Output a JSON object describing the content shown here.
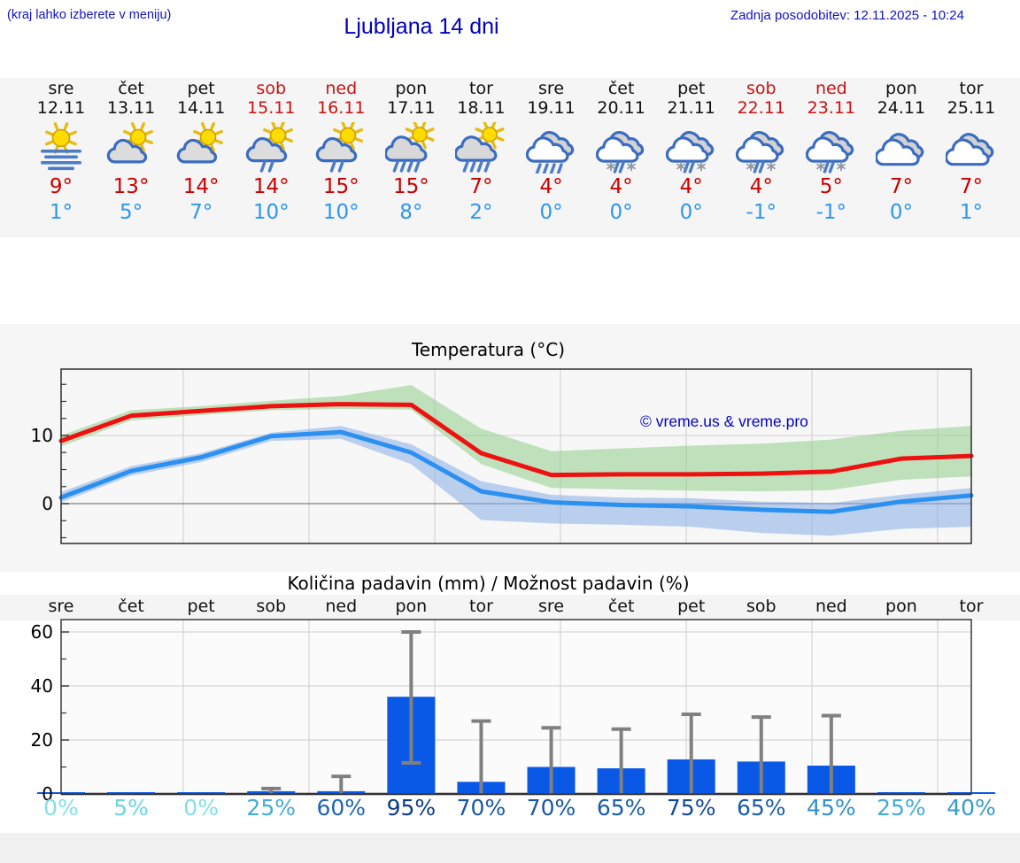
{
  "header": {
    "hint": "(kraj lahko izberete v meniju)",
    "title": "Ljubljana 14 dni",
    "updated": "Zadnja posodobitev: 12.11.2025 - 10:24"
  },
  "watermark": "© vreme.us & vreme.pro",
  "colors": {
    "header_blue": "#1212cc",
    "temp_max_red": "#cc0000",
    "temp_min_blue": "#2e96f0",
    "weekend_red": "#cc1111",
    "bar_blue": "#0a58e6",
    "error_gray": "#808080",
    "max_line": "#ee1111",
    "min_line": "#2b90f0",
    "max_band": "#8fce88",
    "min_band": "#88aee8"
  },
  "days": [
    {
      "name": "sre",
      "date": "12.11",
      "red": false,
      "icon": "fog-sun",
      "tmax": "9°",
      "tmin": "1°"
    },
    {
      "name": "čet",
      "date": "13.11",
      "red": false,
      "icon": "partly-cloudy",
      "tmax": "13°",
      "tmin": "5°"
    },
    {
      "name": "pet",
      "date": "14.11",
      "red": false,
      "icon": "partly-cloudy",
      "tmax": "14°",
      "tmin": "7°"
    },
    {
      "name": "sob",
      "date": "15.11",
      "red": true,
      "icon": "rain-sun",
      "tmax": "14°",
      "tmin": "10°"
    },
    {
      "name": "ned",
      "date": "16.11",
      "red": true,
      "icon": "rain-sun",
      "tmax": "15°",
      "tmin": "10°"
    },
    {
      "name": "pon",
      "date": "17.11",
      "red": false,
      "icon": "rain-sun-heavy",
      "tmax": "15°",
      "tmin": "8°"
    },
    {
      "name": "tor",
      "date": "18.11",
      "red": false,
      "icon": "rain-sun-heavy",
      "tmax": "7°",
      "tmin": "2°"
    },
    {
      "name": "sre",
      "date": "19.11",
      "red": false,
      "icon": "rain",
      "tmax": "4°",
      "tmin": "0°"
    },
    {
      "name": "čet",
      "date": "20.11",
      "red": false,
      "icon": "sleet",
      "tmax": "4°",
      "tmin": "0°"
    },
    {
      "name": "pet",
      "date": "21.11",
      "red": false,
      "icon": "sleet",
      "tmax": "4°",
      "tmin": "0°"
    },
    {
      "name": "sob",
      "date": "22.11",
      "red": true,
      "icon": "sleet",
      "tmax": "4°",
      "tmin": "-1°"
    },
    {
      "name": "ned",
      "date": "23.11",
      "red": true,
      "icon": "sleet",
      "tmax": "5°",
      "tmin": "-1°"
    },
    {
      "name": "pon",
      "date": "24.11",
      "red": false,
      "icon": "cloudy",
      "tmax": "7°",
      "tmin": "0°"
    },
    {
      "name": "tor",
      "date": "25.11",
      "red": false,
      "icon": "cloudy",
      "tmax": "7°",
      "tmin": "1°"
    }
  ],
  "chart_data": [
    {
      "type": "line",
      "title": "Temperatura (°C)",
      "x_categories": [
        "sre",
        "čet",
        "pet",
        "sob",
        "ned",
        "pon",
        "tor",
        "sre",
        "čet",
        "pet",
        "sob",
        "ned",
        "pon",
        "tor"
      ],
      "ylabel_ticks": [
        0,
        10
      ],
      "yrange": [
        -5.8,
        19.7
      ],
      "grid": true,
      "watermark": "© vreme.us & vreme.pro",
      "series": [
        {
          "name": "max-temp",
          "color": "#ee1111",
          "band_color": "#8fce88",
          "values": [
            9.2,
            12.9,
            13.6,
            14.3,
            14.6,
            14.5,
            7.4,
            4.2,
            4.3,
            4.3,
            4.4,
            4.7,
            6.6,
            7.0
          ],
          "band_upper": [
            10.0,
            13.7,
            14.3,
            15.1,
            15.8,
            17.4,
            11.0,
            7.7,
            8.1,
            8.5,
            8.8,
            9.4,
            10.7,
            11.4
          ],
          "band_lower": [
            8.4,
            12.2,
            13.0,
            13.7,
            13.9,
            13.8,
            5.8,
            2.3,
            2.1,
            1.9,
            1.8,
            2.0,
            3.5,
            4.0
          ]
        },
        {
          "name": "min-temp",
          "color": "#2b90f0",
          "band_color": "#88aee8",
          "values": [
            0.9,
            4.8,
            6.8,
            9.9,
            10.5,
            7.5,
            1.8,
            0.2,
            -0.2,
            -0.4,
            -0.9,
            -1.2,
            0.3,
            1.2
          ],
          "band_upper": [
            1.7,
            5.5,
            7.4,
            10.4,
            11.4,
            8.7,
            3.3,
            1.3,
            0.9,
            0.8,
            0.3,
            0.1,
            1.3,
            2.3
          ],
          "band_lower": [
            0.2,
            4.1,
            6.1,
            9.2,
            9.5,
            5.8,
            -2.4,
            -2.9,
            -3.1,
            -3.4,
            -4.3,
            -4.7,
            -3.7,
            -3.4
          ]
        }
      ]
    },
    {
      "type": "bar",
      "title": "Količina padavin (mm) / Možnost padavin (%)",
      "categories": [
        "sre",
        "čet",
        "pet",
        "sob",
        "ned",
        "pon",
        "tor",
        "sre",
        "čet",
        "pet",
        "sob",
        "ned",
        "pon",
        "tor"
      ],
      "values": [
        0.2,
        0.3,
        0.2,
        1.0,
        1.0,
        36,
        4.5,
        10,
        9.5,
        12.8,
        12,
        10.5,
        0.3,
        0.3
      ],
      "error_low": [
        null,
        null,
        null,
        null,
        null,
        11.5,
        null,
        null,
        null,
        null,
        null,
        null,
        null,
        null
      ],
      "error_high": [
        null,
        null,
        null,
        2,
        6.5,
        60,
        27,
        24.5,
        24,
        29.5,
        28.5,
        29,
        null,
        null
      ],
      "pop_percent": [
        "0%",
        "5%",
        "0%",
        "25%",
        "60%",
        "95%",
        "70%",
        "70%",
        "65%",
        "75%",
        "65%",
        "45%",
        "25%",
        "40%"
      ],
      "pop_colors": [
        "#82dfe9",
        "#69d6e4",
        "#82dfe9",
        "#45acd9",
        "#1e65b3",
        "#0d3b8b",
        "#1857a7",
        "#1857a7",
        "#1a5caa",
        "#13499a",
        "#1a5caa",
        "#3290c9",
        "#45acd9",
        "#3a99d0"
      ],
      "yticks": [
        0,
        20,
        40,
        60
      ],
      "ylim": [
        0,
        64.5
      ],
      "bar_color": "#0a58e6",
      "error_color": "#808080"
    }
  ]
}
